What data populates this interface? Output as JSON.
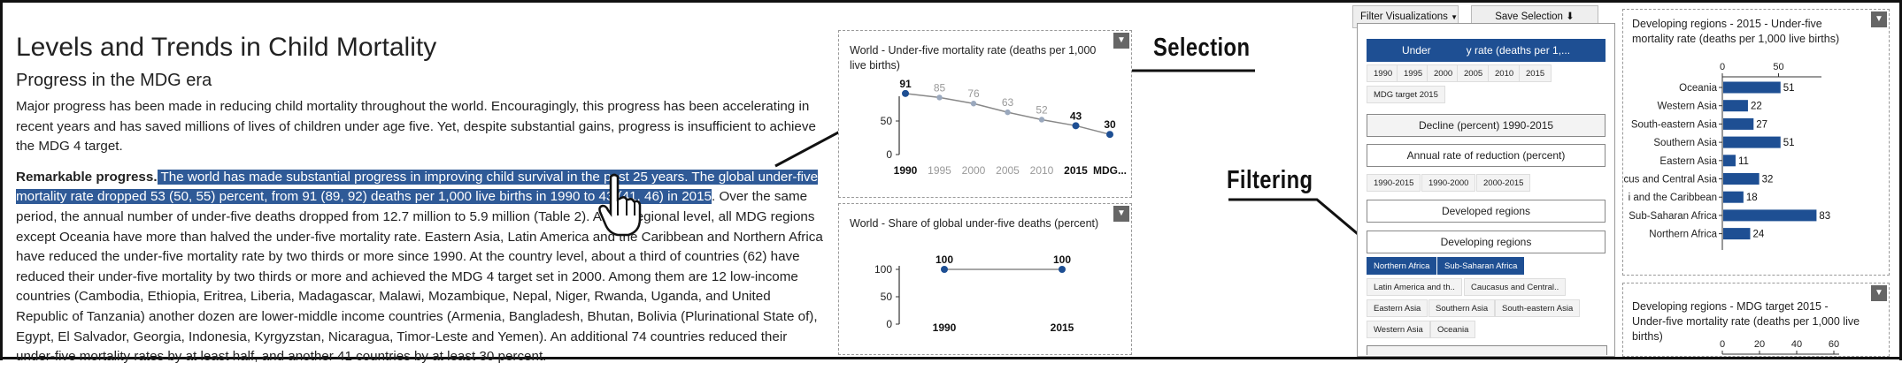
{
  "article": {
    "title": "Levels and Trends in Child Mortality",
    "subtitle": "Progress in the MDG era",
    "para1": "Major progress has been made in reducing child mortality throughout the world. Encouragingly, this progress has been accelerating in recent years and has saved millions of lives of children under age five. Yet, despite substantial gains, progress is insufficient to achieve the MDG 4 target.",
    "para2_bold": "Remarkable progress.",
    "para2_highlight": " The world has made substantial progress in improving child survival in the past 25 years. The global under-five mortality rate dropped 53 (50, 55) percent, from 91 (89, 92) deaths per 1,000 live births in 1990 to 43 (41, 46) in 2015",
    "para2_rest": ". Over the same period, the annual number of under-five deaths dropped from 12.7 million to 5.9 million (Table 2). At the regional level, all MDG regions except Oceania have more than halved the under-five mortality rate. Eastern Asia, Latin America and the Caribbean and Northern Africa have reduced the under-five mortality rate by two thirds or more since 1990. At the country level, about a third of countries (62) have reduced their under-five mortality by two thirds or more and achieved the MDG 4 target set in 2000. Among them are 12 low-income countries (Cambodia, Ethiopia, Eritrea, Liberia, Madagascar, Malawi, Mozambique, Nepal, Niger, Rwanda, Uganda, and United Republic of Tanzania) another dozen are lower-middle income countries (Armenia, Bangladesh, Bhutan, Bolivia (Plurinational State of), Egypt, El Salvador, Georgia, Indonesia, Kyrgyzstan, Nicaragua, Timor-Leste and Yemen). An additional 74 countries reduced their under-five mortality rates by at least half, and another 41 countries by at least 30 percent."
  },
  "annotations": {
    "selection": "Selection",
    "filtering": "Filtering"
  },
  "chart_data": [
    {
      "type": "line",
      "title": "World - Under-five mortality rate (deaths per 1,000 live births)",
      "x": [
        "1990",
        "1995",
        "2000",
        "2005",
        "2010",
        "2015",
        "MDG..."
      ],
      "values": [
        91,
        85,
        76,
        63,
        52,
        43,
        30
      ],
      "highlighted": [
        "1990",
        "2015",
        "MDG..."
      ],
      "yticks": [
        0,
        50
      ],
      "ylim": [
        0,
        100
      ]
    },
    {
      "type": "line",
      "title": "World - Share of global under-five deaths (percent)",
      "x": [
        "1990",
        "2015"
      ],
      "values": [
        100,
        100
      ],
      "yticks": [
        0,
        50,
        100
      ],
      "ylim": [
        0,
        100
      ]
    },
    {
      "type": "bar",
      "orientation": "horizontal",
      "title": "Developing regions - 2015 - Under-five mortality rate (deaths per 1,000 live births)",
      "categories": [
        "Oceania",
        "Western Asia",
        "South-eastern Asia",
        "Southern Asia",
        "Eastern Asia",
        "cus and Central Asia",
        "i and the Caribbean",
        "Sub-Saharan Africa",
        "Northern Africa"
      ],
      "values": [
        51,
        22,
        27,
        51,
        11,
        32,
        18,
        83,
        24
      ],
      "xticks": [
        0,
        50
      ],
      "xlim": [
        0,
        100
      ],
      "color": "#1e4f93"
    },
    {
      "type": "bar",
      "orientation": "horizontal",
      "title": "Developing regions - MDG target 2015 - Under-five mortality rate (deaths per 1,000 live births)",
      "xticks": [
        0,
        20,
        40,
        60
      ]
    }
  ],
  "filter": {
    "menu_label": "Filter Visualizations",
    "menu_caret": "▼",
    "save_label": "Save Selection",
    "save_icon": "⬇",
    "metric_button": "Under-five mortality rate (deaths per 1,...",
    "metric_visible_left": "Under",
    "metric_visible_right": "y rate (deaths per 1,...",
    "years": [
      "1990",
      "1995",
      "2000",
      "2005",
      "2010",
      "2015",
      "MDG target 2015"
    ],
    "decline_button": "Decline (percent) 1990-2015",
    "rate_button": "Annual rate of reduction (percent)",
    "periods": [
      "1990-2015",
      "1990-2000",
      "2000-2015"
    ],
    "developed_button": "Developed regions",
    "developing_button": "Developing regions",
    "regions": [
      "Northern Africa",
      "Sub-Saharan Africa",
      "Latin America and th..",
      "Caucasus and Central..",
      "Eastern Asia",
      "Southern Asia",
      "South-eastern Asia",
      "Western Asia",
      "Oceania"
    ],
    "selected_regions": [
      "Northern Africa",
      "Sub-Saharan Africa"
    ]
  },
  "colors": {
    "accent": "#1e4f93",
    "highlight": "#2f5a97",
    "muted_point": "#9aa8bd",
    "muted_text": "#999999"
  },
  "icons": {
    "dropdown": "chevron-down-icon",
    "cursor": "hand-pointer-icon",
    "download": "download-icon"
  }
}
